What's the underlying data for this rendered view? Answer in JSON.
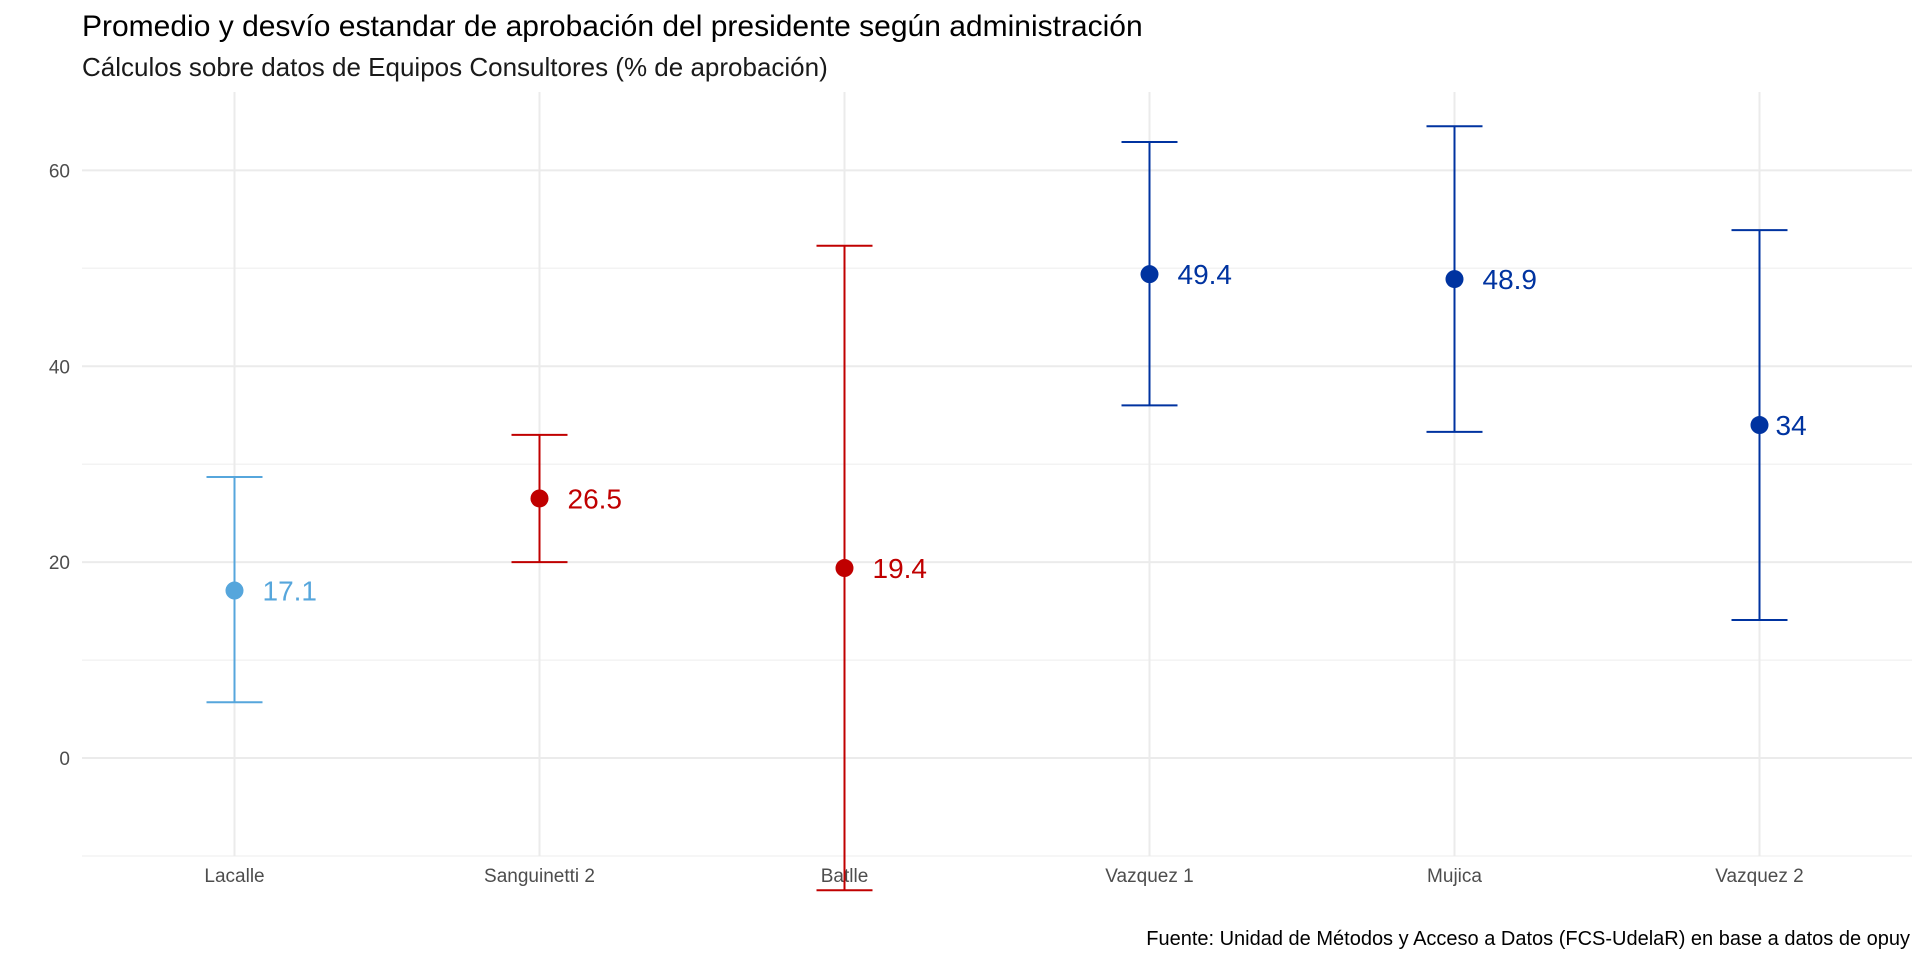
{
  "chart_data": {
    "type": "errorbar",
    "title": "Promedio y desvío estandar de aprobación del presidente según administración",
    "subtitle": "Cálculos sobre datos de Equipos Consultores (% de aprobación)",
    "caption": "Fuente: Unidad de Métodos y Acceso a Datos (FCS-UdelaR) en base a datos de opuy",
    "xlabel": "",
    "ylabel": "",
    "ylim": [
      -10,
      68
    ],
    "y_ticks": [
      0,
      20,
      40,
      60
    ],
    "y_tick_labels": [
      "0",
      "20",
      "40",
      "60"
    ],
    "grid": true,
    "legend": "none",
    "categories": [
      "Lacalle",
      "Sanguinetti 2",
      "Batlle",
      "Vazquez 1",
      "Mujica",
      "Vazquez 2"
    ],
    "points": [
      {
        "category": "Lacalle",
        "mean": 17.1,
        "lower": 5.7,
        "upper": 28.7,
        "label": "17.1",
        "color": "#56a6dc"
      },
      {
        "category": "Sanguinetti 2",
        "mean": 26.5,
        "lower": 20.0,
        "upper": 33.0,
        "label": "26.5",
        "color": "#c00000"
      },
      {
        "category": "Batlle",
        "mean": 19.4,
        "lower": -13.5,
        "upper": 52.3,
        "label": "19.4",
        "color": "#c00000"
      },
      {
        "category": "Vazquez 1",
        "mean": 49.4,
        "lower": 36.0,
        "upper": 62.9,
        "label": "49.4",
        "color": "#0033a0"
      },
      {
        "category": "Mujica",
        "mean": 48.9,
        "lower": 33.3,
        "upper": 64.5,
        "label": "48.9",
        "color": "#0033a0"
      },
      {
        "category": "Vazquez 2",
        "mean": 34.0,
        "lower": 14.1,
        "upper": 53.9,
        "label": "34",
        "color": "#0033a0"
      }
    ]
  }
}
